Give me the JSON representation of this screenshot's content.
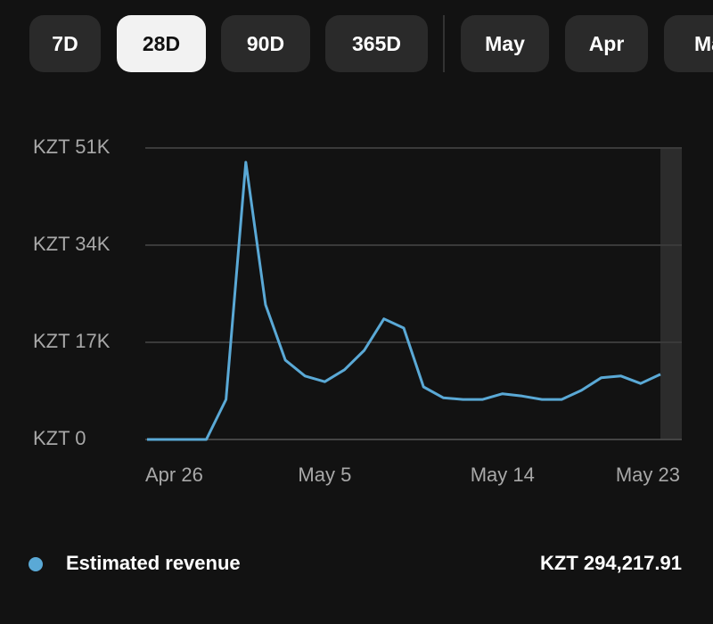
{
  "tabs": [
    "7D",
    "28D",
    "90D",
    "365D",
    "May",
    "Apr",
    "Ma"
  ],
  "selected_tab": 1,
  "chart_data": {
    "type": "line",
    "categories": [
      "Apr 26",
      null,
      null,
      null,
      null,
      null,
      null,
      null,
      null,
      "May 5",
      null,
      null,
      null,
      null,
      null,
      null,
      null,
      null,
      "May 14",
      null,
      null,
      null,
      null,
      null,
      null,
      null,
      null,
      "May 23"
    ],
    "series": [
      {
        "name": "Estimated revenue",
        "color": "#5aa9d6",
        "values": [
          0,
          0,
          0,
          0,
          7000,
          48500,
          23600,
          13900,
          11100,
          10100,
          12200,
          15600,
          21100,
          19500,
          9200,
          7300,
          7000,
          7000,
          8000,
          7600,
          7000,
          7000,
          8600,
          10800,
          11100,
          9800,
          11400,
          null
        ]
      }
    ],
    "ylim": [
      0,
      51000
    ],
    "yticks": [
      {
        "value": 0,
        "label": "KZT 0"
      },
      {
        "value": 17000,
        "label": "KZT 17K"
      },
      {
        "value": 34000,
        "label": "KZT 34K"
      },
      {
        "value": 51000,
        "label": "KZT 51K"
      }
    ],
    "grid": true,
    "total": "KZT 294,217.91"
  }
}
